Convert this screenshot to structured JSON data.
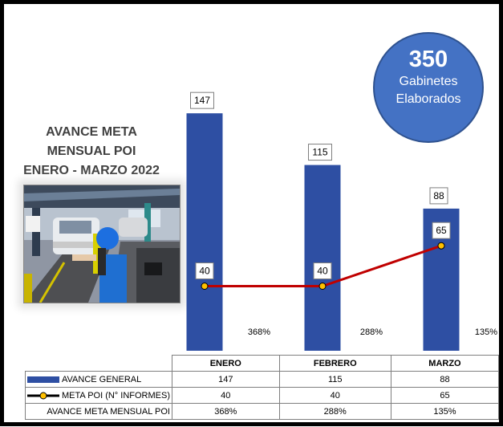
{
  "chart_data": {
    "type": "bar",
    "title": "AVANCE META MENSUAL POI",
    "subtitle": "ENERO - MARZO 2022",
    "categories": [
      "ENERO",
      "FEBRERO",
      "MARZO"
    ],
    "series": [
      {
        "name": "AVANCE GENERAL",
        "type": "bar",
        "color": "#2e4fa3",
        "values": [
          147,
          115,
          88
        ]
      },
      {
        "name": "META POI (N° INFORMES)",
        "type": "line",
        "color": "#c00000",
        "marker_color": "#ffc000",
        "values": [
          40,
          40,
          65
        ]
      }
    ],
    "percent_labels": [
      "368%",
      "288%",
      "135%"
    ],
    "ylim": [
      0,
      160
    ]
  },
  "badge": {
    "value": "350",
    "line1": "Gabinetes",
    "line2": "Elaborados",
    "color": "#4472c4"
  },
  "table": {
    "headers": [
      "ENERO",
      "FEBRERO",
      "MARZO"
    ],
    "rows": [
      {
        "label": "AVANCE GENERAL",
        "values": [
          "147",
          "115",
          "88"
        ]
      },
      {
        "label": "META POI (N° INFORMES)",
        "values": [
          "40",
          "40",
          "65"
        ]
      },
      {
        "label": "AVANCE META MENSUAL POI",
        "values": [
          "368%",
          "288%",
          "135%"
        ]
      }
    ]
  }
}
